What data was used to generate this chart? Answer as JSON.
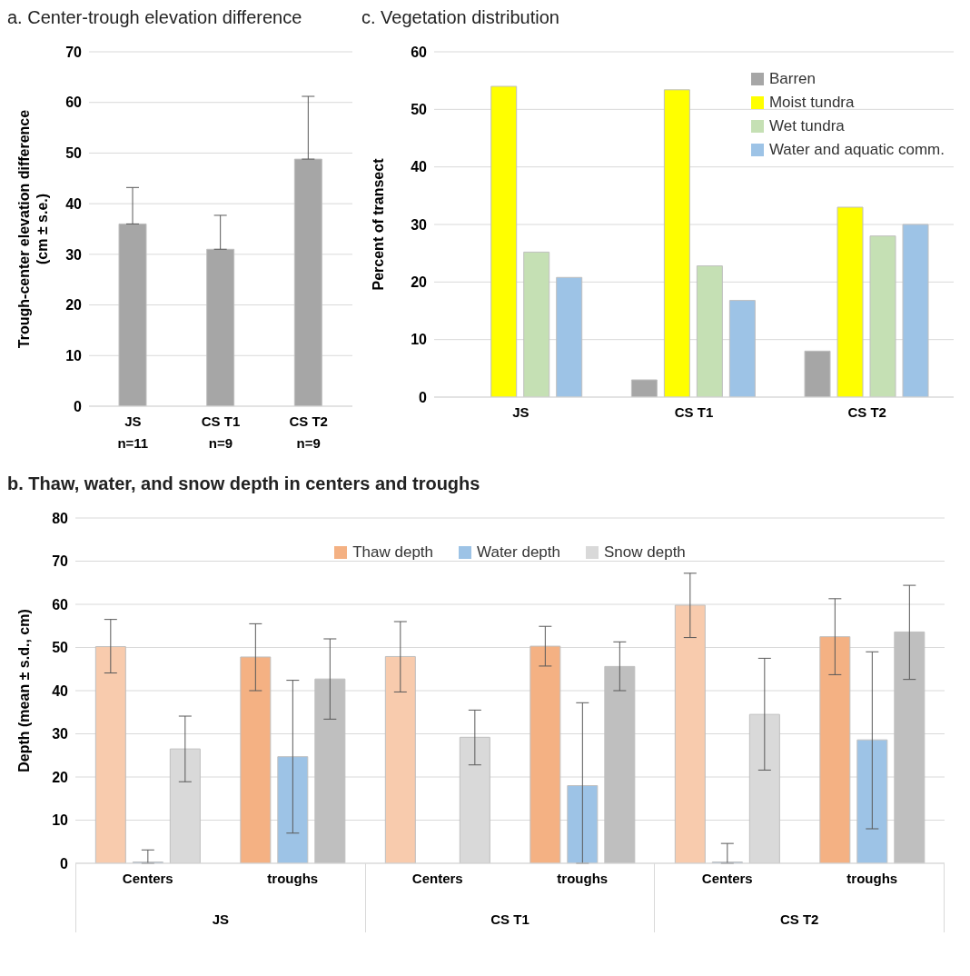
{
  "chart_data": [
    {
      "type": "bar",
      "title": "a. Center-trough elevation difference",
      "ylabel": "Trough-center elevation difference\n(cm ± s.e.)",
      "categories": [
        "JS\nn=11",
        "CS T1\nn=9",
        "CS T2\nn=9"
      ],
      "series": [
        {
          "color": "#a6a6a6",
          "values": [
            36,
            31,
            48.8
          ],
          "errors": [
            [
              36,
              43.2
            ],
            [
              31,
              37.7
            ],
            [
              48.8,
              61.2
            ]
          ]
        }
      ],
      "ylim": [
        0,
        70
      ],
      "yticks": [
        0,
        10,
        20,
        30,
        40,
        50,
        60,
        70
      ],
      "grid": "y",
      "legend": false
    },
    {
      "type": "bar",
      "title": "c. Vegetation distribution",
      "ylabel": "Percent of transect",
      "categories": [
        "JS",
        "CS T1",
        "CS T2"
      ],
      "series": [
        {
          "name": "Barren",
          "color": "#a6a6a6",
          "values": [
            0,
            3,
            8
          ]
        },
        {
          "name": "Moist tundra",
          "color": "#ffff00",
          "values": [
            54,
            53.4,
            33
          ]
        },
        {
          "name": "Wet tundra",
          "color": "#c5e0b4",
          "values": [
            25.2,
            22.8,
            28
          ]
        },
        {
          "name": "Water and aquatic comm.",
          "color": "#9dc3e6",
          "values": [
            20.8,
            16.8,
            30
          ]
        }
      ],
      "ylim": [
        0,
        60
      ],
      "yticks": [
        0,
        10,
        20,
        30,
        40,
        50,
        60
      ],
      "grid": "y",
      "legend": "top right"
    },
    {
      "type": "bar",
      "title": "b. Thaw, water, and snow depth in centers and troughs",
      "ylabel": "Depth (mean ± s.d., cm)",
      "categories": [
        "Centers",
        "troughs",
        "Centers",
        "troughs",
        "Centers",
        "troughs"
      ],
      "series": [
        {
          "name": "Thaw depth",
          "color": "#f4b183",
          "colors": [
            "#f8cbad",
            "#f4b183",
            "#f8cbad",
            "#f4b183",
            "#f8cbad",
            "#f4b183"
          ],
          "values": [
            50.2,
            47.8,
            47.9,
            50.3,
            59.8,
            52.5
          ],
          "errors": [
            [
              44.1,
              56.5
            ],
            [
              40,
              55.5
            ],
            [
              39.7,
              56
            ],
            [
              45.7,
              54.9
            ],
            [
              52.3,
              67.2
            ],
            [
              43.7,
              61.3
            ]
          ]
        },
        {
          "name": "Water depth",
          "color": "#9dc3e6",
          "values": [
            0.3,
            24.7,
            null,
            18,
            0.3,
            28.6
          ],
          "errors": [
            [
              0,
              3.1
            ],
            [
              7,
              42.4
            ],
            null,
            [
              0,
              37.2
            ],
            [
              0,
              4.6
            ],
            [
              8,
              49
            ]
          ]
        },
        {
          "name": "Snow depth",
          "color": "#d9d9d9",
          "colors": [
            "#d9d9d9",
            "#bfbfbf",
            "#d9d9d9",
            "#bfbfbf",
            "#d9d9d9",
            "#bfbfbf"
          ],
          "values": [
            26.5,
            42.7,
            29.2,
            45.6,
            34.5,
            53.6
          ],
          "errors": [
            [
              18.9,
              34.1
            ],
            [
              33.4,
              52
            ],
            [
              22.8,
              35.5
            ],
            [
              40,
              51.3
            ],
            [
              21.6,
              47.5
            ],
            [
              42.6,
              64.4
            ]
          ]
        }
      ],
      "annotations": [
        "JS",
        "CS T1",
        "CS T2"
      ],
      "ylim": [
        0,
        80
      ],
      "yticks": [
        0,
        10,
        20,
        30,
        40,
        50,
        60,
        70,
        80
      ],
      "grid": "y",
      "legend": "top"
    }
  ]
}
